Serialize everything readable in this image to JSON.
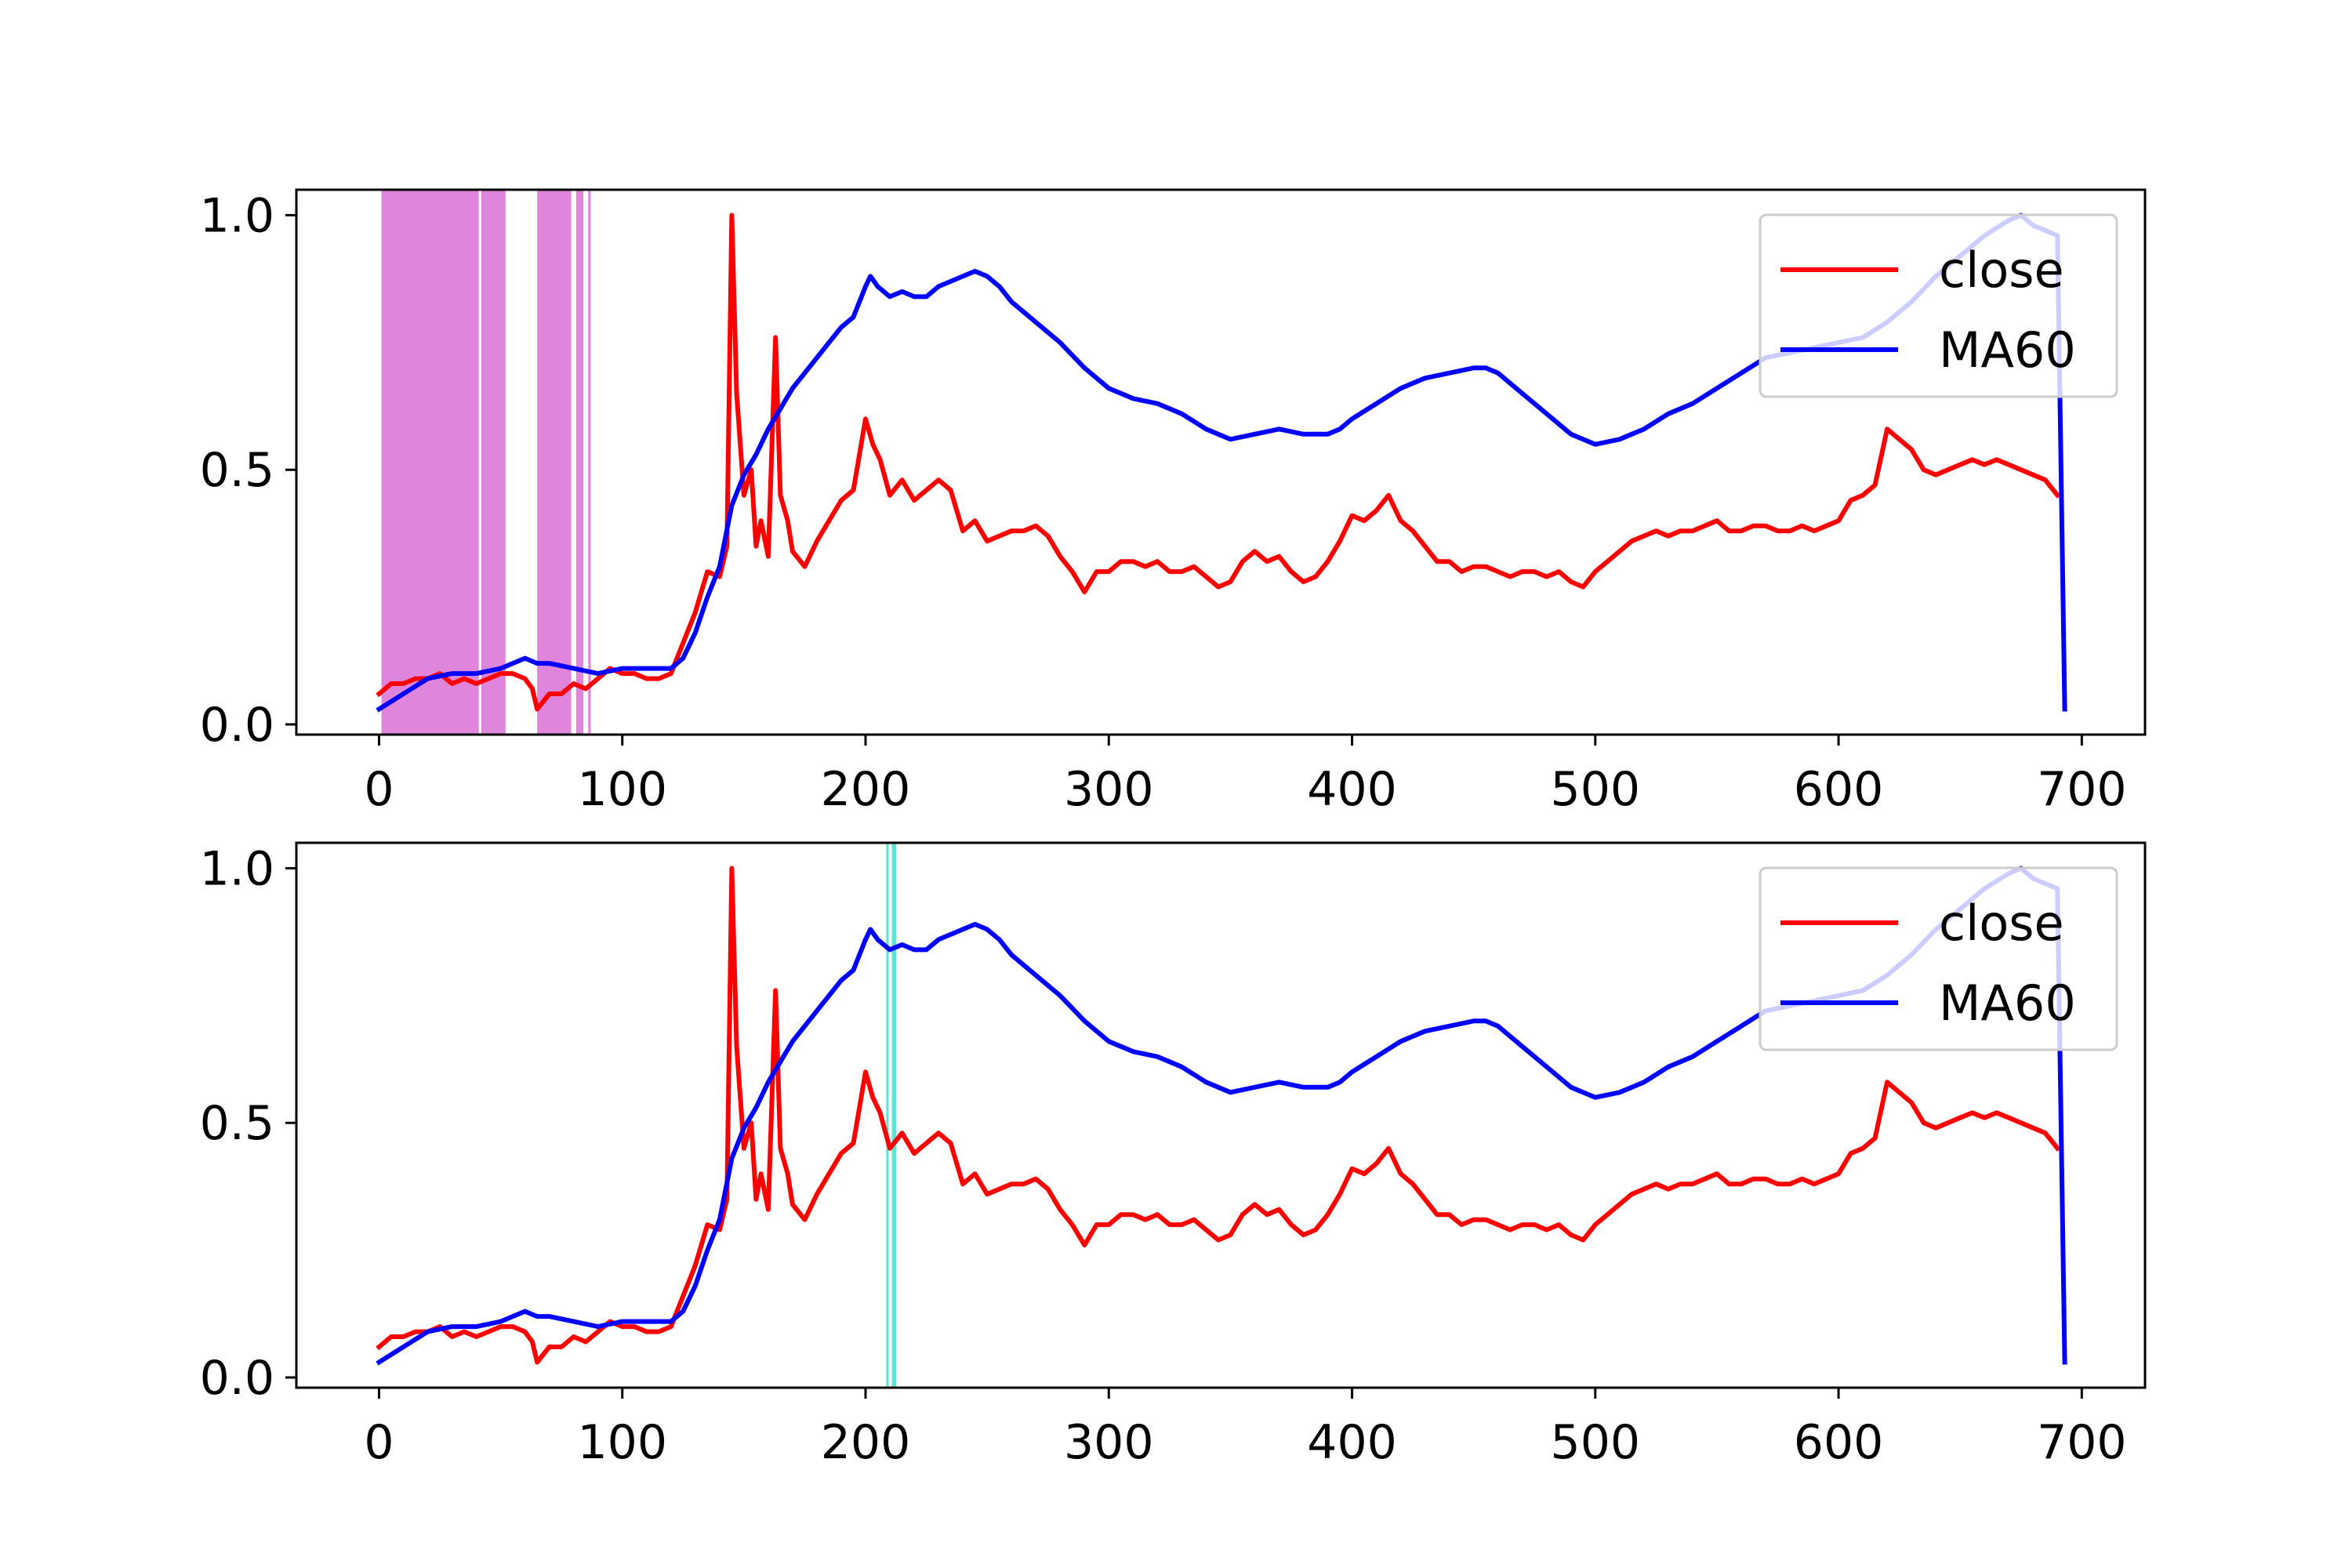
{
  "chart_data": [
    {
      "type": "line",
      "xlim": [
        -34,
        726
      ],
      "ylim": [
        -0.02,
        1.05
      ],
      "xticks": [
        0,
        100,
        200,
        300,
        400,
        500,
        600,
        700
      ],
      "xtick_labels": [
        "0",
        "100",
        "200",
        "300",
        "400",
        "500",
        "600",
        "700"
      ],
      "yticks": [
        0.0,
        0.5,
        1.0
      ],
      "ytick_labels": [
        "0.0",
        "0.5",
        "1.0"
      ],
      "grid": false,
      "legend_position": "upper right",
      "highlight_color": "#da70d6",
      "highlight_spans": [
        [
          1,
          41
        ],
        [
          42,
          52
        ],
        [
          65,
          79
        ],
        [
          81,
          84
        ],
        [
          86,
          87
        ]
      ],
      "series": [
        {
          "name": "close",
          "color": "#ff0000",
          "x": [
            0,
            5,
            10,
            15,
            20,
            25,
            30,
            35,
            40,
            45,
            50,
            55,
            60,
            63,
            65,
            70,
            75,
            80,
            85,
            90,
            95,
            100,
            105,
            110,
            115,
            120,
            125,
            130,
            135,
            140,
            143,
            145,
            147,
            150,
            153,
            155,
            157,
            160,
            163,
            165,
            168,
            170,
            175,
            180,
            185,
            190,
            195,
            200,
            203,
            206,
            210,
            215,
            220,
            225,
            230,
            235,
            240,
            245,
            250,
            255,
            260,
            265,
            270,
            275,
            280,
            285,
            290,
            295,
            300,
            305,
            310,
            315,
            320,
            325,
            330,
            335,
            340,
            345,
            350,
            355,
            360,
            365,
            370,
            375,
            380,
            385,
            390,
            395,
            400,
            405,
            410,
            415,
            420,
            425,
            430,
            435,
            440,
            445,
            450,
            455,
            460,
            465,
            470,
            475,
            480,
            485,
            490,
            495,
            500,
            505,
            510,
            515,
            520,
            525,
            530,
            535,
            540,
            545,
            550,
            555,
            560,
            565,
            570,
            575,
            580,
            585,
            590,
            595,
            600,
            605,
            610,
            615,
            620,
            625,
            630,
            635,
            640,
            645,
            650,
            655,
            660,
            665,
            670,
            675,
            680,
            685,
            690
          ],
          "values": [
            0.06,
            0.08,
            0.08,
            0.09,
            0.09,
            0.1,
            0.08,
            0.09,
            0.08,
            0.09,
            0.1,
            0.1,
            0.09,
            0.07,
            0.03,
            0.06,
            0.06,
            0.08,
            0.07,
            0.09,
            0.11,
            0.1,
            0.1,
            0.09,
            0.09,
            0.1,
            0.16,
            0.22,
            0.3,
            0.29,
            0.35,
            1.0,
            0.65,
            0.45,
            0.5,
            0.35,
            0.4,
            0.33,
            0.76,
            0.45,
            0.4,
            0.34,
            0.31,
            0.36,
            0.4,
            0.44,
            0.46,
            0.6,
            0.55,
            0.52,
            0.45,
            0.48,
            0.44,
            0.46,
            0.48,
            0.46,
            0.38,
            0.4,
            0.36,
            0.37,
            0.38,
            0.38,
            0.39,
            0.37,
            0.33,
            0.3,
            0.26,
            0.3,
            0.3,
            0.32,
            0.32,
            0.31,
            0.32,
            0.3,
            0.3,
            0.31,
            0.29,
            0.27,
            0.28,
            0.32,
            0.34,
            0.32,
            0.33,
            0.3,
            0.28,
            0.29,
            0.32,
            0.36,
            0.41,
            0.4,
            0.42,
            0.45,
            0.4,
            0.38,
            0.35,
            0.32,
            0.32,
            0.3,
            0.31,
            0.31,
            0.3,
            0.29,
            0.3,
            0.3,
            0.29,
            0.3,
            0.28,
            0.27,
            0.3,
            0.32,
            0.34,
            0.36,
            0.37,
            0.38,
            0.37,
            0.38,
            0.38,
            0.39,
            0.4,
            0.38,
            0.38,
            0.39,
            0.39,
            0.38,
            0.38,
            0.39,
            0.38,
            0.39,
            0.4,
            0.44,
            0.45,
            0.47,
            0.58,
            0.56,
            0.54,
            0.5,
            0.49,
            0.5,
            0.51,
            0.52,
            0.51,
            0.52,
            0.51,
            0.5,
            0.49,
            0.48,
            0.45
          ]
        },
        {
          "name": "MA60",
          "color": "#0000ff",
          "x": [
            0,
            10,
            20,
            30,
            40,
            50,
            55,
            60,
            65,
            70,
            80,
            90,
            100,
            110,
            120,
            125,
            130,
            135,
            140,
            145,
            150,
            155,
            160,
            165,
            170,
            180,
            190,
            195,
            200,
            202,
            205,
            210,
            215,
            220,
            225,
            230,
            240,
            245,
            250,
            255,
            260,
            265,
            270,
            280,
            290,
            300,
            310,
            320,
            330,
            340,
            350,
            360,
            370,
            380,
            390,
            395,
            400,
            410,
            420,
            430,
            440,
            450,
            455,
            460,
            470,
            480,
            490,
            500,
            510,
            520,
            530,
            540,
            550,
            560,
            570,
            580,
            590,
            600,
            610,
            620,
            630,
            640,
            650,
            660,
            670,
            675,
            680,
            690,
            693
          ],
          "values": [
            0.03,
            0.06,
            0.09,
            0.1,
            0.1,
            0.11,
            0.12,
            0.13,
            0.12,
            0.12,
            0.11,
            0.1,
            0.11,
            0.11,
            0.11,
            0.13,
            0.18,
            0.25,
            0.31,
            0.43,
            0.49,
            0.53,
            0.58,
            0.62,
            0.66,
            0.72,
            0.78,
            0.8,
            0.86,
            0.88,
            0.86,
            0.84,
            0.85,
            0.84,
            0.84,
            0.86,
            0.88,
            0.89,
            0.88,
            0.86,
            0.83,
            0.81,
            0.79,
            0.75,
            0.7,
            0.66,
            0.64,
            0.63,
            0.61,
            0.58,
            0.56,
            0.57,
            0.58,
            0.57,
            0.57,
            0.58,
            0.6,
            0.63,
            0.66,
            0.68,
            0.69,
            0.7,
            0.7,
            0.69,
            0.65,
            0.61,
            0.57,
            0.55,
            0.56,
            0.58,
            0.61,
            0.63,
            0.66,
            0.69,
            0.72,
            0.73,
            0.74,
            0.75,
            0.76,
            0.79,
            0.83,
            0.88,
            0.92,
            0.96,
            0.99,
            1.0,
            0.98,
            0.96,
            0.03
          ]
        }
      ]
    },
    {
      "type": "line",
      "xlim": [
        -34,
        726
      ],
      "ylim": [
        -0.02,
        1.05
      ],
      "xticks": [
        0,
        100,
        200,
        300,
        400,
        500,
        600,
        700
      ],
      "xtick_labels": [
        "0",
        "100",
        "200",
        "300",
        "400",
        "500",
        "600",
        "700"
      ],
      "yticks": [
        0.0,
        0.5,
        1.0
      ],
      "ytick_labels": [
        "0.0",
        "0.5",
        "1.0"
      ],
      "grid": false,
      "legend_position": "upper right",
      "highlight_color": "#40e0d0",
      "highlight_spans": [
        [
          208.5,
          209.5
        ],
        [
          210.8,
          212.6
        ]
      ],
      "series": [
        {
          "name": "close",
          "color": "#ff0000",
          "x": [
            0,
            5,
            10,
            15,
            20,
            25,
            30,
            35,
            40,
            45,
            50,
            55,
            60,
            63,
            65,
            70,
            75,
            80,
            85,
            90,
            95,
            100,
            105,
            110,
            115,
            120,
            125,
            130,
            135,
            140,
            143,
            145,
            147,
            150,
            153,
            155,
            157,
            160,
            163,
            165,
            168,
            170,
            175,
            180,
            185,
            190,
            195,
            200,
            203,
            206,
            210,
            215,
            220,
            225,
            230,
            235,
            240,
            245,
            250,
            255,
            260,
            265,
            270,
            275,
            280,
            285,
            290,
            295,
            300,
            305,
            310,
            315,
            320,
            325,
            330,
            335,
            340,
            345,
            350,
            355,
            360,
            365,
            370,
            375,
            380,
            385,
            390,
            395,
            400,
            405,
            410,
            415,
            420,
            425,
            430,
            435,
            440,
            445,
            450,
            455,
            460,
            465,
            470,
            475,
            480,
            485,
            490,
            495,
            500,
            505,
            510,
            515,
            520,
            525,
            530,
            535,
            540,
            545,
            550,
            555,
            560,
            565,
            570,
            575,
            580,
            585,
            590,
            595,
            600,
            605,
            610,
            615,
            620,
            625,
            630,
            635,
            640,
            645,
            650,
            655,
            660,
            665,
            670,
            675,
            680,
            685,
            690
          ],
          "values": [
            0.06,
            0.08,
            0.08,
            0.09,
            0.09,
            0.1,
            0.08,
            0.09,
            0.08,
            0.09,
            0.1,
            0.1,
            0.09,
            0.07,
            0.03,
            0.06,
            0.06,
            0.08,
            0.07,
            0.09,
            0.11,
            0.1,
            0.1,
            0.09,
            0.09,
            0.1,
            0.16,
            0.22,
            0.3,
            0.29,
            0.35,
            1.0,
            0.65,
            0.45,
            0.5,
            0.35,
            0.4,
            0.33,
            0.76,
            0.45,
            0.4,
            0.34,
            0.31,
            0.36,
            0.4,
            0.44,
            0.46,
            0.6,
            0.55,
            0.52,
            0.45,
            0.48,
            0.44,
            0.46,
            0.48,
            0.46,
            0.38,
            0.4,
            0.36,
            0.37,
            0.38,
            0.38,
            0.39,
            0.37,
            0.33,
            0.3,
            0.26,
            0.3,
            0.3,
            0.32,
            0.32,
            0.31,
            0.32,
            0.3,
            0.3,
            0.31,
            0.29,
            0.27,
            0.28,
            0.32,
            0.34,
            0.32,
            0.33,
            0.3,
            0.28,
            0.29,
            0.32,
            0.36,
            0.41,
            0.4,
            0.42,
            0.45,
            0.4,
            0.38,
            0.35,
            0.32,
            0.32,
            0.3,
            0.31,
            0.31,
            0.3,
            0.29,
            0.3,
            0.3,
            0.29,
            0.3,
            0.28,
            0.27,
            0.3,
            0.32,
            0.34,
            0.36,
            0.37,
            0.38,
            0.37,
            0.38,
            0.38,
            0.39,
            0.4,
            0.38,
            0.38,
            0.39,
            0.39,
            0.38,
            0.38,
            0.39,
            0.38,
            0.39,
            0.4,
            0.44,
            0.45,
            0.47,
            0.58,
            0.56,
            0.54,
            0.5,
            0.49,
            0.5,
            0.51,
            0.52,
            0.51,
            0.52,
            0.51,
            0.5,
            0.49,
            0.48,
            0.45
          ]
        },
        {
          "name": "MA60",
          "color": "#0000ff",
          "x": [
            0,
            10,
            20,
            30,
            40,
            50,
            55,
            60,
            65,
            70,
            80,
            90,
            100,
            110,
            120,
            125,
            130,
            135,
            140,
            145,
            150,
            155,
            160,
            165,
            170,
            180,
            190,
            195,
            200,
            202,
            205,
            210,
            215,
            220,
            225,
            230,
            240,
            245,
            250,
            255,
            260,
            265,
            270,
            280,
            290,
            300,
            310,
            320,
            330,
            340,
            350,
            360,
            370,
            380,
            390,
            395,
            400,
            410,
            420,
            430,
            440,
            450,
            455,
            460,
            470,
            480,
            490,
            500,
            510,
            520,
            530,
            540,
            550,
            560,
            570,
            580,
            590,
            600,
            610,
            620,
            630,
            640,
            650,
            660,
            670,
            675,
            680,
            690,
            693
          ],
          "values": [
            0.03,
            0.06,
            0.09,
            0.1,
            0.1,
            0.11,
            0.12,
            0.13,
            0.12,
            0.12,
            0.11,
            0.1,
            0.11,
            0.11,
            0.11,
            0.13,
            0.18,
            0.25,
            0.31,
            0.43,
            0.49,
            0.53,
            0.58,
            0.62,
            0.66,
            0.72,
            0.78,
            0.8,
            0.86,
            0.88,
            0.86,
            0.84,
            0.85,
            0.84,
            0.84,
            0.86,
            0.88,
            0.89,
            0.88,
            0.86,
            0.83,
            0.81,
            0.79,
            0.75,
            0.7,
            0.66,
            0.64,
            0.63,
            0.61,
            0.58,
            0.56,
            0.57,
            0.58,
            0.57,
            0.57,
            0.58,
            0.6,
            0.63,
            0.66,
            0.68,
            0.69,
            0.7,
            0.7,
            0.69,
            0.65,
            0.61,
            0.57,
            0.55,
            0.56,
            0.58,
            0.61,
            0.63,
            0.66,
            0.69,
            0.72,
            0.73,
            0.74,
            0.75,
            0.76,
            0.79,
            0.83,
            0.88,
            0.92,
            0.96,
            0.99,
            1.0,
            0.98,
            0.96,
            0.03
          ]
        }
      ]
    }
  ]
}
